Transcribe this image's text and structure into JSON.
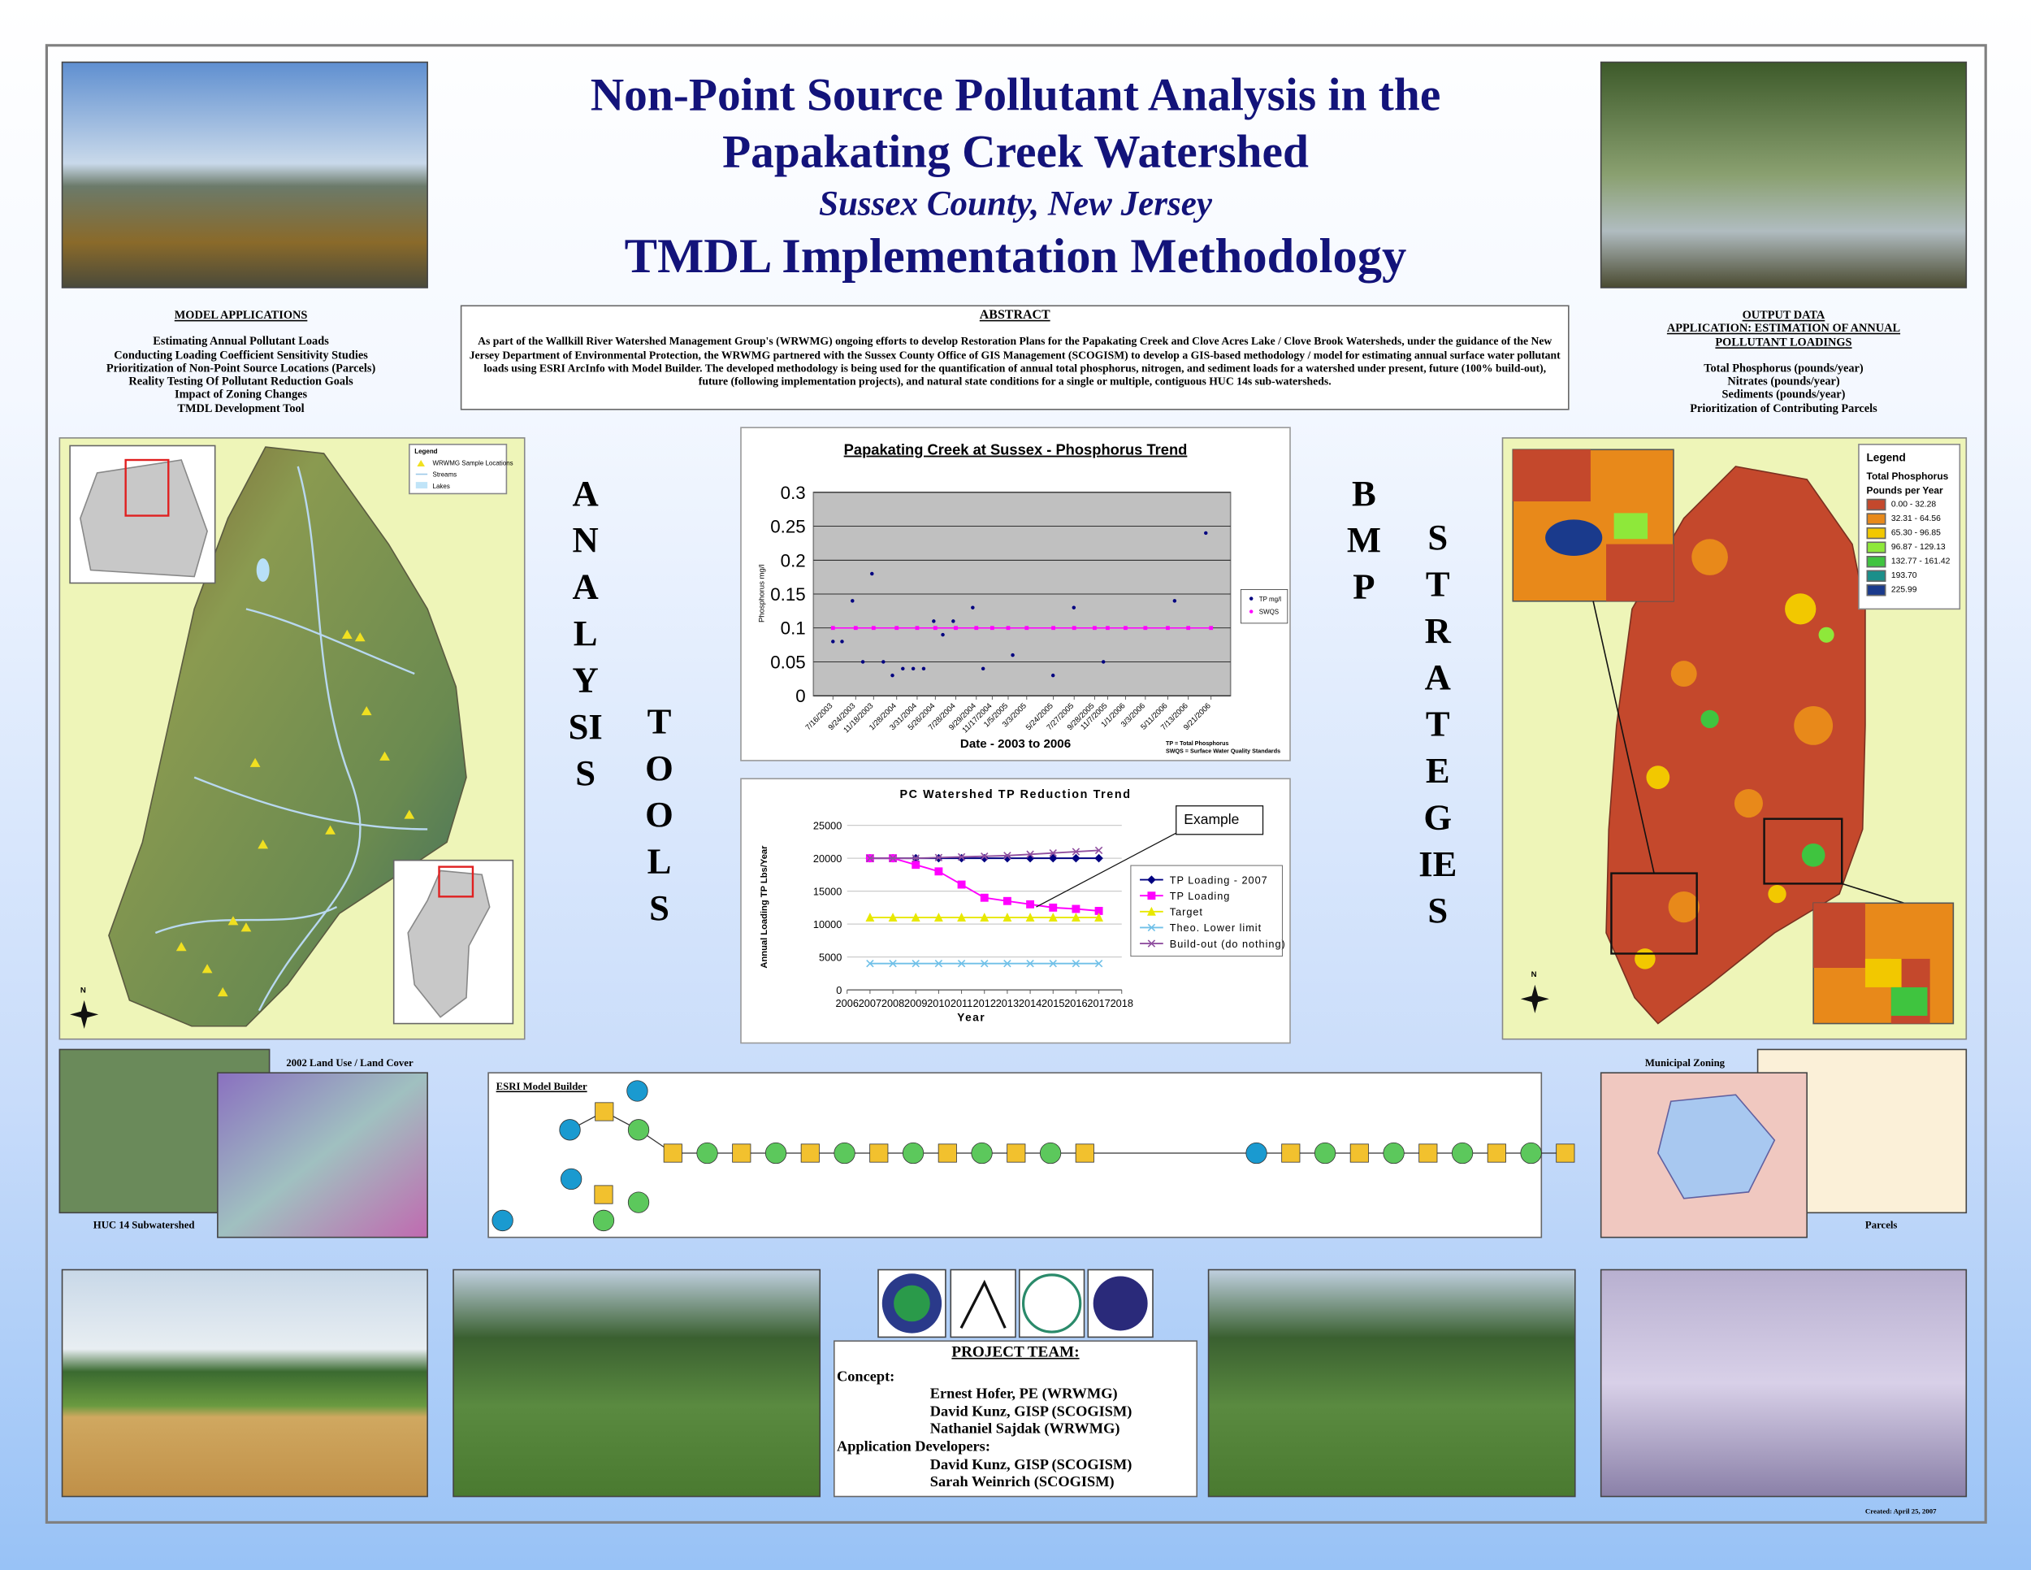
{
  "header": {
    "title_line1": "Non-Point Source Pollutant Analysis in the",
    "title_line2": "Papakating Creek Watershed",
    "subtitle": "Sussex County, New Jersey",
    "title_line3": "TMDL Implementation Methodology"
  },
  "model_applications": {
    "heading": "MODEL APPLICATIONS",
    "items": [
      "Estimating Annual Pollutant Loads",
      "Conducting Loading Coefficient Sensitivity Studies",
      "Prioritization of Non-Point Source Locations (Parcels)",
      "Reality Testing Of Pollutant Reduction Goals",
      "Impact of Zoning Changes",
      "TMDL Development Tool"
    ]
  },
  "abstract": {
    "heading": "ABSTRACT",
    "text": "As part of the Wallkill River Watershed Management Group's (WRWMG) ongoing efforts to develop Restoration Plans for the Papakating Creek and Clove Acres Lake / Clove Brook Watersheds, under the guidance of the New Jersey Department of Environmental Protection, the WRWMG partnered with the Sussex County Office of GIS Management (SCOGISM) to develop a GIS-based methodology / model for estimating annual surface water pollutant loads using ESRI ArcInfo with Model Builder. The developed methodology is being used for the quantification of annual total phosphorus, nitrogen, and sediment loads for a watershed under present, future (100% build-out), future (following implementation projects), and natural state conditions for a single or multiple, contiguous HUC 14s sub-watersheds."
  },
  "output_data": {
    "heading_line1": "OUTPUT DATA",
    "heading_line2": "APPLICATION: ESTIMATION OF ANNUAL POLLUTANT LOADINGS",
    "items": [
      "Total Phosphorus (pounds/year)",
      "Nitrates (pounds/year)",
      "Sediments (pounds/year)",
      "Prioritization of Contributing Parcels"
    ]
  },
  "side_words": {
    "analysis": "ANALYSIS",
    "tools": "TOOLS",
    "bmp": "BMP",
    "strategies": "STRATEGIES"
  },
  "analysis_map": {
    "legend_title": "Legend",
    "legend_items": [
      "WRWMG Sample Locations",
      "Streams",
      "Lakes"
    ],
    "north": "N"
  },
  "phosphorus_map": {
    "legend_title": "Legend",
    "legend_subtitle1": "Total Phosphorus",
    "legend_subtitle2": "Pounds per Year",
    "classes": [
      {
        "label": "0.00 - 32.28",
        "color": "#c4482c"
      },
      {
        "label": "32.31 - 64.56",
        "color": "#e8891a"
      },
      {
        "label": "65.30 - 96.85",
        "color": "#f2c800"
      },
      {
        "label": "96.87 - 129.13",
        "color": "#8ee83a"
      },
      {
        "label": "132.77 - 161.42",
        "color": "#3fc43f"
      },
      {
        "label": "193.70",
        "color": "#1b8f8a"
      },
      {
        "label": "225.99",
        "color": "#1a3a8c"
      }
    ],
    "north": "N"
  },
  "panels": {
    "land_use": "2002 Land Use / Land Cover",
    "huc": "HUC 14 Subwatershed",
    "model_builder": "ESRI Model Builder",
    "zoning": "Municipal Zoning",
    "parcels": "Parcels"
  },
  "project_team": {
    "heading": "PROJECT TEAM:",
    "concept_label": "Concept:",
    "concept_members": [
      "Ernest Hofer, PE (WRWMG)",
      "David Kunz, GISP (SCOGISM)",
      "Nathaniel Sajdak (WRWMG)"
    ],
    "developers_label": "Application Developers:",
    "developers_members": [
      "David Kunz, GISP (SCOGISM)",
      "Sarah Weinrich (SCOGISM)"
    ]
  },
  "created": "Created: April 25, 2007",
  "chart_data": [
    {
      "type": "scatter",
      "title": "Papakating Creek  at Sussex - Phosphorus Trend",
      "x_label": "Date - 2003 to 2006",
      "y_label": "Phosphorus mg/l",
      "notes": [
        "TP = Total Phosphorus",
        "SWQS = Surface Water Quality Standards"
      ],
      "xlim": [
        "5/17/2003",
        "11/20/2006"
      ],
      "xticks": [
        "7/16/2003",
        "9/24/2003",
        "11/18/2003",
        "1/28/2004",
        "3/31/2004",
        "5/26/2004",
        "7/28/2004",
        "9/29/2004",
        "11/17/2004",
        "1/5/2005",
        "3/3/2005",
        "5/24/2005",
        "7/27/2005",
        "9/28/2005",
        "11/7/2005",
        "1/1/2006",
        "3/3/2006",
        "5/11/2006",
        "7/13/2006",
        "9/21/2006"
      ],
      "ylim": [
        0,
        0.3
      ],
      "yticks": [
        0,
        0.05,
        0.1,
        0.15,
        0.2,
        0.25,
        0.3
      ],
      "grid": true,
      "series": [
        {
          "name": "TP mg/l",
          "color": "#000080",
          "style": "markers",
          "x": [
            "7/16/2003",
            "8/13/2003",
            "9/14/2003",
            "10/16/2003",
            "11/13/2003",
            "12/18/2003",
            "1/15/2004",
            "2/16/2004",
            "3/19/2004",
            "4/20/2004",
            "5/21/2004",
            "6/18/2004",
            "7/20/2004",
            "9/18/2004",
            "10/20/2004",
            "1/19/2005",
            "5/23/2005",
            "7/26/2005",
            "10/25/2005",
            "6/1/2006",
            "9/5/2006"
          ],
          "values": [
            0.08,
            0.08,
            0.14,
            0.05,
            0.18,
            0.05,
            0.03,
            0.04,
            0.04,
            0.04,
            0.11,
            0.09,
            0.11,
            0.13,
            0.04,
            0.06,
            0.03,
            0.13,
            0.05,
            0.14,
            0.24
          ]
        },
        {
          "name": "SWQS",
          "color": "#ff00ff",
          "style": "line-markers",
          "x": [
            "7/16/2003",
            "9/24/2003",
            "11/18/2003",
            "1/28/2004",
            "3/31/2004",
            "5/26/2004",
            "7/28/2004",
            "9/29/2004",
            "11/17/2004",
            "1/5/2005",
            "3/3/2005",
            "5/24/2005",
            "7/27/2005",
            "9/28/2005",
            "11/7/2005",
            "1/1/2006",
            "3/3/2006",
            "5/11/2006",
            "7/13/2006",
            "9/21/2006"
          ],
          "values": [
            0.1,
            0.1,
            0.1,
            0.1,
            0.1,
            0.1,
            0.1,
            0.1,
            0.1,
            0.1,
            0.1,
            0.1,
            0.1,
            0.1,
            0.1,
            0.1,
            0.1,
            0.1,
            0.1,
            0.1
          ]
        }
      ]
    },
    {
      "type": "line",
      "title": "PC Watershed TP Reduction Trend",
      "x_label": "Year",
      "y_label": "Annual Loading TP Lbs/Year",
      "annotation": "Example",
      "x": [
        2007,
        2008,
        2009,
        2010,
        2011,
        2012,
        2013,
        2014,
        2015,
        2016,
        2017
      ],
      "xlim": [
        2006,
        2018
      ],
      "xticks": [
        2006,
        2007,
        2008,
        2009,
        2010,
        2011,
        2012,
        2013,
        2014,
        2015,
        2016,
        2017,
        2018
      ],
      "ylim": [
        0,
        25000
      ],
      "yticks": [
        0,
        5000,
        10000,
        15000,
        20000,
        25000
      ],
      "grid": true,
      "series": [
        {
          "name": "TP Loading - 2007",
          "color": "#000080",
          "values": [
            20000,
            20000,
            20000,
            20000,
            20000,
            20000,
            20000,
            20000,
            20000,
            20000,
            20000
          ]
        },
        {
          "name": "TP Loading",
          "color": "#ff00ff",
          "values": [
            20000,
            20000,
            19000,
            18000,
            16000,
            14000,
            13500,
            13000,
            12500,
            12300,
            12000
          ]
        },
        {
          "name": "Target",
          "color": "#e8e800",
          "values": [
            11000,
            11000,
            11000,
            11000,
            11000,
            11000,
            11000,
            11000,
            11000,
            11000,
            11000
          ]
        },
        {
          "name": "Theo. Lower limit",
          "color": "#70c0e8",
          "values": [
            4000,
            4000,
            4000,
            4000,
            4000,
            4000,
            4000,
            4000,
            4000,
            4000,
            4000
          ]
        },
        {
          "name": "Build-out (do nothing)",
          "color": "#9050a0",
          "values": [
            20000,
            20000,
            20000,
            20100,
            20200,
            20300,
            20400,
            20600,
            20800,
            21000,
            21200
          ]
        }
      ]
    }
  ]
}
